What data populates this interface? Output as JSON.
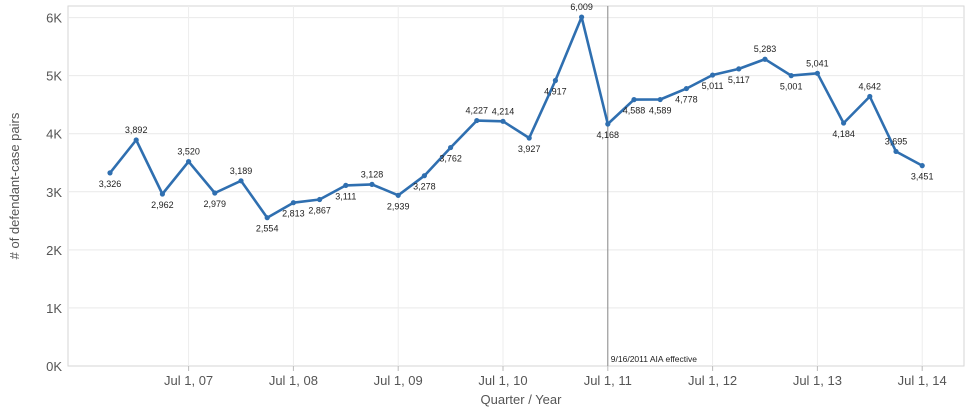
{
  "chart_data": {
    "type": "line",
    "title": "",
    "xlabel": "Quarter / Year",
    "ylabel": "# of defendant-case pairs",
    "ylim": [
      0,
      6200
    ],
    "y_ticks": [
      {
        "value": 0,
        "label": "0K"
      },
      {
        "value": 1000,
        "label": "1K"
      },
      {
        "value": 2000,
        "label": "2K"
      },
      {
        "value": 3000,
        "label": "3K"
      },
      {
        "value": 4000,
        "label": "4K"
      },
      {
        "value": 5000,
        "label": "5K"
      },
      {
        "value": 6000,
        "label": "6K"
      }
    ],
    "x_ticks": [
      {
        "index": 3,
        "label": "Jul 1, 07"
      },
      {
        "index": 7,
        "label": "Jul 1, 08"
      },
      {
        "index": 11,
        "label": "Jul 1, 09"
      },
      {
        "index": 15,
        "label": "Jul 1, 10"
      },
      {
        "index": 19,
        "label": "Jul 1, 11"
      },
      {
        "index": 23,
        "label": "Jul 1, 12"
      },
      {
        "index": 27,
        "label": "Jul 1, 13"
      },
      {
        "index": 31,
        "label": "Jul 1, 14"
      }
    ],
    "grid": true,
    "color": "#2f6fb0",
    "series": [
      {
        "values": [
          3326,
          3892,
          2962,
          3520,
          2979,
          3189,
          2554,
          2813,
          2867,
          3111,
          3128,
          2939,
          3278,
          3762,
          4227,
          4214,
          3927,
          4917,
          6009,
          4168,
          4588,
          4589,
          4778,
          5011,
          5117,
          5283,
          5001,
          5041,
          4184,
          4642,
          3695,
          3451
        ],
        "labels": [
          "3,326",
          "3,892",
          "2,962",
          "3,520",
          "2,979",
          "3,189",
          "2,554",
          "2,813",
          "2,867",
          "3,111",
          "3,128",
          "2,939",
          "3,278",
          "3,762",
          "4,227",
          "4,214",
          "3,927",
          "4,917",
          "6,009",
          "4,168",
          "4,588",
          "4,589",
          "4,778",
          "5,011",
          "5,117",
          "5,283",
          "5,001",
          "5,041",
          "4,184",
          "4,642",
          "3,695",
          "3,451"
        ]
      }
    ],
    "reference_line": {
      "index": 19,
      "label": "9/16/2011 AIA effective",
      "color": "#888888"
    }
  }
}
